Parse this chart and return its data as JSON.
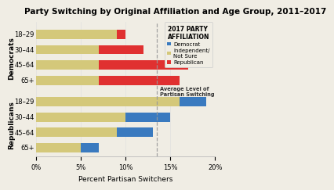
{
  "title": "Party Switching by Original Affiliation and Age Group, 2011–2017",
  "xlabel": "Percent Partisan Switchers",
  "avg_line": 13.5,
  "avg_label": "Average Level of\nPartisan Switching",
  "xlim": [
    0,
    20
  ],
  "xticks": [
    0,
    5,
    10,
    15,
    20
  ],
  "background_color": "#f0ede4",
  "dem_groups": [
    "18–29",
    "30–44",
    "45–64",
    "65+"
  ],
  "rep_groups": [
    "18–29",
    "30–44",
    "45–64",
    "65+"
  ],
  "dem_yellow": [
    9.0,
    7.0,
    7.0,
    7.0
  ],
  "dem_red": [
    1.0,
    5.0,
    10.0,
    9.0
  ],
  "rep_yellow": [
    16.0,
    10.0,
    9.0,
    5.0
  ],
  "rep_blue": [
    3.0,
    5.0,
    4.0,
    2.0
  ],
  "color_yellow": "#d4c87a",
  "color_red": "#e03030",
  "color_blue": "#3a7abf",
  "legend_title": "2017 PARTY\nAFFILIATION",
  "legend_labels": [
    "Democrat",
    "Independent/\nNot Sure",
    "Republican"
  ],
  "legend_colors": [
    "#3a7abf",
    "#d4c87a",
    "#e03030"
  ],
  "group_label_dem": "Democrats",
  "group_label_rep": "Republicans",
  "bar_height": 0.6,
  "title_fontsize": 7.5,
  "axis_fontsize": 6.5,
  "tick_fontsize": 6.0,
  "legend_fontsize": 5.0,
  "legend_title_fontsize": 5.5
}
